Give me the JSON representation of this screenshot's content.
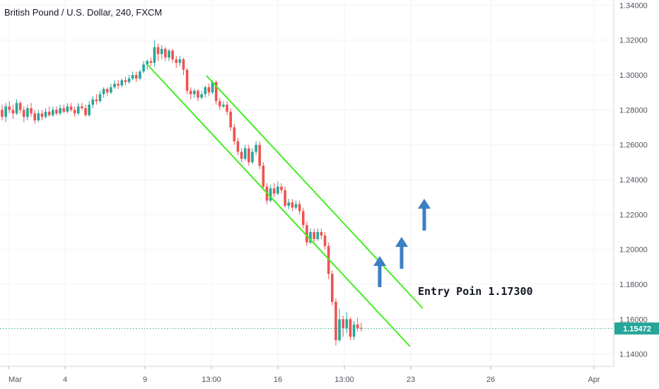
{
  "header": {
    "title": "British Pound / U.S. Dollar, 240, FXCM"
  },
  "chart_data": {
    "type": "candlestick",
    "title": "British Pound / U.S. Dollar, 240, FXCM",
    "ylim": [
      1.133,
      1.343
    ],
    "y_ticks": [
      "1.14000",
      "1.16000",
      "1.18000",
      "1.20000",
      "1.22000",
      "1.24000",
      "1.26000",
      "1.28000",
      "1.30000",
      "1.32000",
      "1.34000"
    ],
    "x_ticks": [
      "Mar",
      "4",
      "9",
      "13:00",
      "16",
      "13:00",
      "23",
      "26",
      "Apr"
    ],
    "grid": true,
    "current_price": {
      "value": 1.15472,
      "label": "1.15472"
    },
    "annotation": {
      "text": "Entry Poin 1.17300"
    },
    "up_color": "#26a69a",
    "down_color": "#ef5350",
    "channel_color": "#44ee22",
    "arrow_color": "#3d7fc4",
    "arrows": [
      {
        "name": "arrow-1"
      },
      {
        "name": "arrow-2"
      },
      {
        "name": "arrow-3"
      }
    ],
    "candles": [
      [
        1.28,
        1.276,
        1.283,
        1.274
      ],
      [
        1.276,
        1.282,
        1.284,
        1.273
      ],
      [
        1.282,
        1.28,
        1.285,
        1.278
      ],
      [
        1.28,
        1.278,
        1.283,
        1.275
      ],
      [
        1.278,
        1.284,
        1.286,
        1.277
      ],
      [
        1.284,
        1.28,
        1.285,
        1.278
      ],
      [
        1.28,
        1.276,
        1.282,
        1.273
      ],
      [
        1.276,
        1.281,
        1.283,
        1.274
      ],
      [
        1.281,
        1.278,
        1.284,
        1.276
      ],
      [
        1.278,
        1.274,
        1.28,
        1.272
      ],
      [
        1.274,
        1.278,
        1.28,
        1.273
      ],
      [
        1.278,
        1.276,
        1.28,
        1.274
      ],
      [
        1.276,
        1.279,
        1.281,
        1.275
      ],
      [
        1.279,
        1.277,
        1.282,
        1.276
      ],
      [
        1.277,
        1.28,
        1.282,
        1.276
      ],
      [
        1.28,
        1.278,
        1.282,
        1.277
      ],
      [
        1.278,
        1.281,
        1.283,
        1.277
      ],
      [
        1.281,
        1.279,
        1.283,
        1.278
      ],
      [
        1.279,
        1.282,
        1.284,
        1.278
      ],
      [
        1.282,
        1.28,
        1.284,
        1.279
      ],
      [
        1.28,
        1.278,
        1.282,
        1.276
      ],
      [
        1.278,
        1.282,
        1.284,
        1.277
      ],
      [
        1.282,
        1.281,
        1.284,
        1.28
      ],
      [
        1.281,
        1.277,
        1.283,
        1.276
      ],
      [
        1.277,
        1.283,
        1.285,
        1.276
      ],
      [
        1.283,
        1.286,
        1.288,
        1.281
      ],
      [
        1.286,
        1.285,
        1.289,
        1.283
      ],
      [
        1.285,
        1.289,
        1.291,
        1.284
      ],
      [
        1.289,
        1.292,
        1.293,
        1.287
      ],
      [
        1.292,
        1.29,
        1.293,
        1.288
      ],
      [
        1.29,
        1.293,
        1.295,
        1.289
      ],
      [
        1.293,
        1.295,
        1.297,
        1.292
      ],
      [
        1.295,
        1.294,
        1.297,
        1.292
      ],
      [
        1.294,
        1.297,
        1.298,
        1.293
      ],
      [
        1.297,
        1.296,
        1.299,
        1.294
      ],
      [
        1.296,
        1.298,
        1.3,
        1.295
      ],
      [
        1.298,
        1.3,
        1.302,
        1.297
      ],
      [
        1.3,
        1.298,
        1.302,
        1.296
      ],
      [
        1.298,
        1.302,
        1.303,
        1.297
      ],
      [
        1.302,
        1.306,
        1.308,
        1.301
      ],
      [
        1.306,
        1.308,
        1.309,
        1.303
      ],
      [
        1.308,
        1.307,
        1.31,
        1.305
      ],
      [
        1.307,
        1.316,
        1.32,
        1.305
      ],
      [
        1.316,
        1.312,
        1.318,
        1.308
      ],
      [
        1.312,
        1.315,
        1.317,
        1.309
      ],
      [
        1.315,
        1.31,
        1.316,
        1.308
      ],
      [
        1.31,
        1.314,
        1.315,
        1.308
      ],
      [
        1.314,
        1.309,
        1.315,
        1.307
      ],
      [
        1.309,
        1.307,
        1.311,
        1.304
      ],
      [
        1.307,
        1.309,
        1.311,
        1.305
      ],
      [
        1.309,
        1.303,
        1.31,
        1.3
      ],
      [
        1.303,
        1.291,
        1.304,
        1.289
      ],
      [
        1.291,
        1.289,
        1.293,
        1.286
      ],
      [
        1.289,
        1.291,
        1.292,
        1.287
      ],
      [
        1.291,
        1.287,
        1.292,
        1.285
      ],
      [
        1.287,
        1.289,
        1.291,
        1.286
      ],
      [
        1.289,
        1.293,
        1.294,
        1.287
      ],
      [
        1.293,
        1.29,
        1.295,
        1.288
      ],
      [
        1.29,
        1.296,
        1.297,
        1.289
      ],
      [
        1.296,
        1.285,
        1.297,
        1.283
      ],
      [
        1.285,
        1.282,
        1.287,
        1.28
      ],
      [
        1.282,
        1.283,
        1.285,
        1.281
      ],
      [
        1.283,
        1.279,
        1.285,
        1.277
      ],
      [
        1.279,
        1.27,
        1.281,
        1.268
      ],
      [
        1.27,
        1.262,
        1.272,
        1.26
      ],
      [
        1.262,
        1.256,
        1.264,
        1.254
      ],
      [
        1.256,
        1.252,
        1.258,
        1.25
      ],
      [
        1.252,
        1.258,
        1.26,
        1.251
      ],
      [
        1.258,
        1.25,
        1.26,
        1.248
      ],
      [
        1.25,
        1.256,
        1.258,
        1.249
      ],
      [
        1.256,
        1.26,
        1.262,
        1.254
      ],
      [
        1.26,
        1.248,
        1.262,
        1.246
      ],
      [
        1.248,
        1.236,
        1.25,
        1.234
      ],
      [
        1.236,
        1.228,
        1.238,
        1.226
      ],
      [
        1.228,
        1.235,
        1.237,
        1.227
      ],
      [
        1.235,
        1.232,
        1.238,
        1.23
      ],
      [
        1.232,
        1.236,
        1.239,
        1.231
      ],
      [
        1.236,
        1.234,
        1.238,
        1.232
      ],
      [
        1.234,
        1.225,
        1.236,
        1.224
      ],
      [
        1.225,
        1.227,
        1.229,
        1.223
      ],
      [
        1.227,
        1.224,
        1.229,
        1.222
      ],
      [
        1.224,
        1.226,
        1.228,
        1.223
      ],
      [
        1.226,
        1.222,
        1.228,
        1.22
      ],
      [
        1.222,
        1.214,
        1.224,
        1.212
      ],
      [
        1.214,
        1.204,
        1.216,
        1.202
      ],
      [
        1.204,
        1.21,
        1.212,
        1.203
      ],
      [
        1.21,
        1.206,
        1.212,
        1.204
      ],
      [
        1.206,
        1.21,
        1.212,
        1.205
      ],
      [
        1.21,
        1.208,
        1.212,
        1.206
      ],
      [
        1.208,
        1.202,
        1.21,
        1.2
      ],
      [
        1.202,
        1.186,
        1.204,
        1.183
      ],
      [
        1.186,
        1.17,
        1.188,
        1.168
      ],
      [
        1.17,
        1.148,
        1.172,
        1.145
      ],
      [
        1.148,
        1.16,
        1.166,
        1.147
      ],
      [
        1.16,
        1.155,
        1.162,
        1.15
      ],
      [
        1.155,
        1.16,
        1.164,
        1.152
      ],
      [
        1.16,
        1.15,
        1.161,
        1.148
      ],
      [
        1.15,
        1.157,
        1.159,
        1.148
      ],
      [
        1.157,
        1.155,
        1.161,
        1.153
      ],
      [
        1.155,
        1.1547,
        1.158,
        1.153
      ]
    ]
  }
}
